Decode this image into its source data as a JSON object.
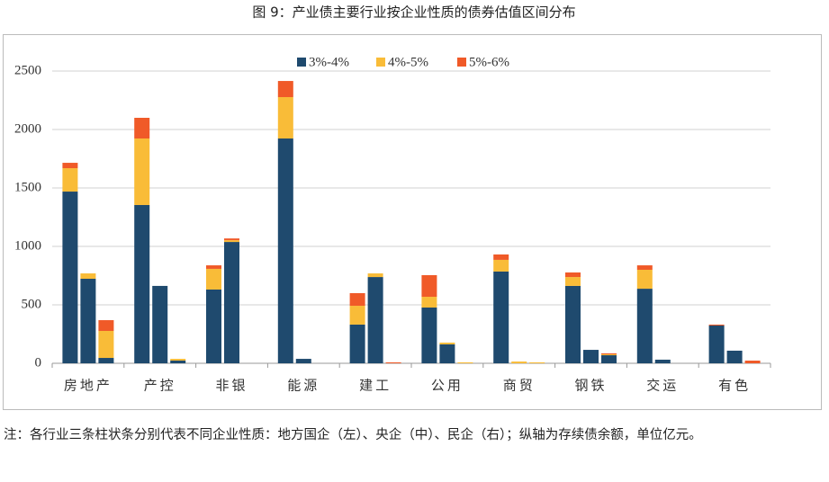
{
  "chart_data": {
    "type": "grouped-stacked-bar",
    "title": "图 9：产业债主要行业按企业性质的债券估值区间分布",
    "note": "注：各行业三条柱状条分别代表不同企业性质：地方国企（左）、央企（中）、民企（右）；纵轴为存续债余额，单位亿元。",
    "categories": [
      "房地产",
      "产控",
      "非银",
      "能源",
      "建工",
      "公用",
      "商贸",
      "钢铁",
      "交运",
      "有色"
    ],
    "series": [
      {
        "name": "3%-4%",
        "color": "#1f4a6e",
        "values": [
          [
            1469,
            723,
            46
          ],
          [
            1354,
            662,
            23
          ],
          [
            631,
            1038,
            0
          ],
          [
            1923,
            38,
            0
          ],
          [
            331,
            738,
            0
          ],
          [
            477,
            162,
            0
          ],
          [
            785,
            0,
            0
          ],
          [
            662,
            115,
            69
          ],
          [
            638,
            31,
            0
          ],
          [
            323,
            108,
            0
          ]
        ]
      },
      {
        "name": "4%-5%",
        "color": "#f9bc38",
        "values": [
          [
            200,
            46,
            231
          ],
          [
            569,
            0,
            15
          ],
          [
            177,
            15,
            0
          ],
          [
            354,
            0,
            0
          ],
          [
            161,
            31,
            0
          ],
          [
            92,
            15,
            8
          ],
          [
            100,
            15,
            8
          ],
          [
            76,
            0,
            8
          ],
          [
            162,
            0,
            0
          ],
          [
            0,
            0,
            0
          ]
        ]
      },
      {
        "name": "5%-6%",
        "color": "#f05a28",
        "values": [
          [
            46,
            0,
            92
          ],
          [
            177,
            0,
            0
          ],
          [
            30,
            15,
            0
          ],
          [
            138,
            0,
            0
          ],
          [
            108,
            0,
            8
          ],
          [
            185,
            0,
            0
          ],
          [
            46,
            0,
            0
          ],
          [
            39,
            0,
            8
          ],
          [
            38,
            0,
            0
          ],
          [
            8,
            0,
            23
          ]
        ]
      }
    ],
    "ylim": [
      0,
      2500
    ],
    "yticks": [
      0,
      500,
      1000,
      1500,
      2000,
      2500
    ],
    "grid": true,
    "legend": "top"
  }
}
